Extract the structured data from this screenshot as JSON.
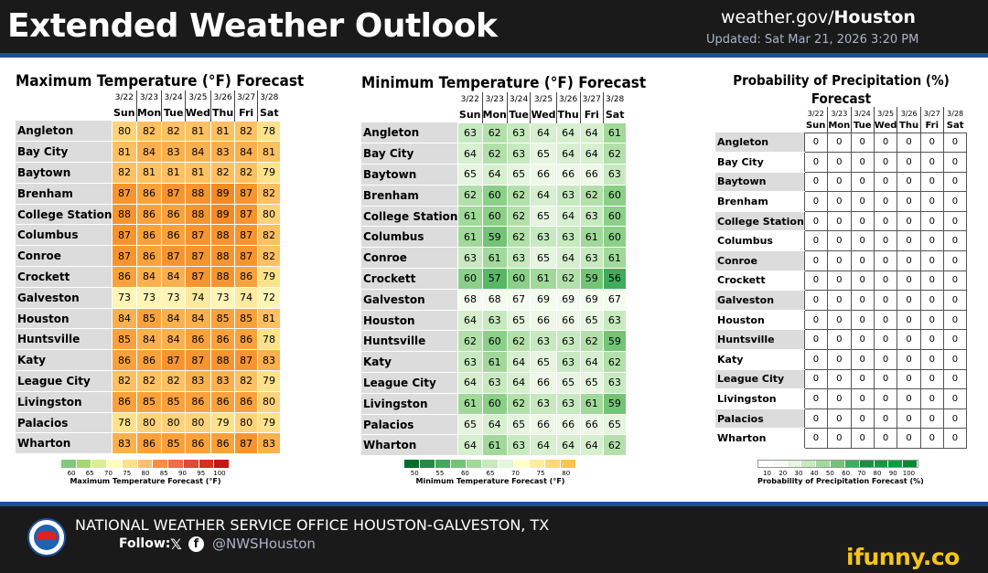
{
  "header": {
    "title": "Extended Weather Outlook",
    "site_prefix": "weather.gov/",
    "site_bold": "Houston",
    "updated": "Updated: Sat Mar 21, 2026 3:20 PM"
  },
  "dates": [
    "3/22",
    "3/23",
    "3/24",
    "3/25",
    "3/26",
    "3/27",
    "3/28"
  ],
  "days": [
    "Sun",
    "Mon",
    "Tue",
    "Wed",
    "Thu",
    "Fri",
    "Sat"
  ],
  "cities": [
    "Angleton",
    "Bay City",
    "Baytown",
    "Brenham",
    "College Station",
    "Columbus",
    "Conroe",
    "Crockett",
    "Galveston",
    "Houston",
    "Huntsville",
    "Katy",
    "League City",
    "Livingston",
    "Palacios",
    "Wharton"
  ],
  "max_temp": {
    "title": "Maximum Temperature (°F) Forecast",
    "values": [
      [
        80,
        82,
        82,
        81,
        81,
        82,
        78
      ],
      [
        81,
        84,
        83,
        84,
        83,
        84,
        81
      ],
      [
        82,
        81,
        81,
        81,
        82,
        82,
        79
      ],
      [
        87,
        86,
        87,
        88,
        89,
        87,
        82
      ],
      [
        88,
        86,
        86,
        88,
        89,
        87,
        80
      ],
      [
        87,
        86,
        86,
        87,
        88,
        87,
        82
      ],
      [
        87,
        86,
        87,
        87,
        88,
        87,
        82
      ],
      [
        86,
        84,
        84,
        87,
        88,
        86,
        79
      ],
      [
        73,
        73,
        73,
        74,
        73,
        74,
        72
      ],
      [
        84,
        85,
        84,
        84,
        85,
        85,
        81
      ],
      [
        85,
        84,
        84,
        86,
        86,
        86,
        78
      ],
      [
        86,
        86,
        87,
        87,
        88,
        87,
        83
      ],
      [
        82,
        82,
        82,
        83,
        83,
        82,
        79
      ],
      [
        86,
        85,
        85,
        86,
        86,
        86,
        80
      ],
      [
        78,
        80,
        80,
        80,
        79,
        80,
        79
      ],
      [
        83,
        86,
        85,
        86,
        86,
        87,
        83
      ]
    ],
    "colorbar": {
      "ticks": [
        "60",
        "65",
        "70",
        "75",
        "80",
        "85",
        "90",
        "95",
        "100"
      ],
      "label": "Maximum Temperature Forecast (°F)",
      "colors": [
        "#7fc97f",
        "#a6d96a",
        "#d9ef8b",
        "#ffffbf",
        "#fee08b",
        "#fdbf6f",
        "#fd8d3c",
        "#f46d43",
        "#e34a33",
        "#d7301f",
        "#c21717"
      ]
    }
  },
  "min_temp": {
    "title": "Minimum Temperature (°F) Forecast",
    "values": [
      [
        63,
        62,
        63,
        64,
        64,
        64,
        61
      ],
      [
        64,
        62,
        63,
        65,
        64,
        64,
        62
      ],
      [
        65,
        64,
        65,
        66,
        66,
        66,
        63
      ],
      [
        62,
        60,
        62,
        64,
        63,
        62,
        60
      ],
      [
        61,
        60,
        62,
        65,
        64,
        63,
        60
      ],
      [
        61,
        59,
        62,
        63,
        63,
        61,
        60
      ],
      [
        63,
        61,
        63,
        65,
        64,
        63,
        61
      ],
      [
        60,
        57,
        60,
        61,
        62,
        59,
        56
      ],
      [
        68,
        68,
        67,
        69,
        69,
        69,
        67
      ],
      [
        64,
        63,
        65,
        66,
        66,
        65,
        63
      ],
      [
        62,
        60,
        62,
        63,
        63,
        62,
        59
      ],
      [
        63,
        61,
        64,
        65,
        63,
        64,
        62
      ],
      [
        64,
        63,
        64,
        66,
        65,
        65,
        63
      ],
      [
        61,
        60,
        62,
        63,
        63,
        61,
        59
      ],
      [
        65,
        64,
        65,
        66,
        66,
        66,
        65
      ],
      [
        64,
        61,
        63,
        64,
        64,
        64,
        62
      ]
    ],
    "colorbar": {
      "ticks": [
        "50",
        "55",
        "60",
        "65",
        "70",
        "75",
        "80"
      ],
      "label": "Minimum Temperature Forecast (°F)",
      "colors": [
        "#006d2c",
        "#238b45",
        "#41ab5d",
        "#74c476",
        "#a1d99b",
        "#c7e9c0",
        "#e5f5e0",
        "#ffffcc",
        "#ffeda0",
        "#fed976",
        "#fec44f"
      ]
    }
  },
  "precip": {
    "title_line1": "Probability of Precipitation (%)",
    "title_line2": "Forecast",
    "values": [
      [
        0,
        0,
        0,
        0,
        0,
        0,
        0
      ],
      [
        0,
        0,
        0,
        0,
        0,
        0,
        0
      ],
      [
        0,
        0,
        0,
        0,
        0,
        0,
        0
      ],
      [
        0,
        0,
        0,
        0,
        0,
        0,
        0
      ],
      [
        0,
        0,
        0,
        0,
        0,
        0,
        0
      ],
      [
        0,
        0,
        0,
        0,
        0,
        0,
        0
      ],
      [
        0,
        0,
        0,
        0,
        0,
        0,
        0
      ],
      [
        0,
        0,
        0,
        0,
        0,
        0,
        0
      ],
      [
        0,
        0,
        0,
        0,
        0,
        0,
        0
      ],
      [
        0,
        0,
        0,
        0,
        0,
        0,
        0
      ],
      [
        0,
        0,
        0,
        0,
        0,
        0,
        0
      ],
      [
        0,
        0,
        0,
        0,
        0,
        0,
        0
      ],
      [
        0,
        0,
        0,
        0,
        0,
        0,
        0
      ],
      [
        0,
        0,
        0,
        0,
        0,
        0,
        0
      ],
      [
        0,
        0,
        0,
        0,
        0,
        0,
        0
      ],
      [
        0,
        0,
        0,
        0,
        0,
        0,
        0
      ]
    ],
    "colorbar": {
      "ticks": [
        "10",
        "20",
        "30",
        "40",
        "50",
        "60",
        "70",
        "80",
        "90",
        "100"
      ],
      "label": "Probability of Precipitation Forecast (%)",
      "colors": [
        "#ffffff",
        "#f7fcf5",
        "#e5f5e0",
        "#c7e9c0",
        "#a1d99b",
        "#74c476",
        "#41ab5d",
        "#238b45",
        "#1a9641",
        "#00a03c",
        "#008a2e"
      ]
    }
  },
  "footer": {
    "office": "NATIONAL WEATHER SERVICE OFFICE HOUSTON-GALVESTON, TX",
    "follow": "Follow:",
    "x_icon": "𝕏",
    "fb_icon": "f",
    "handle": "@NWSHouston",
    "watermark": "ifunny.co"
  }
}
